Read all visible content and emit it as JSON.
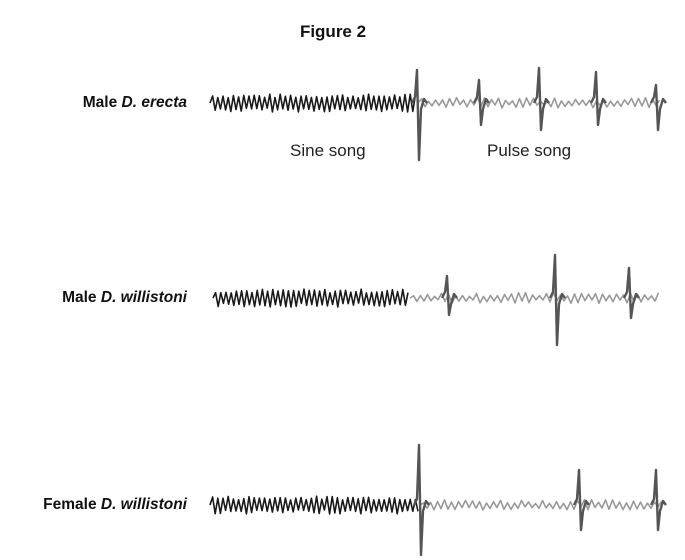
{
  "title": "Figure 2",
  "rows": [
    {
      "prefix": "Male",
      "species": "D. erecta"
    },
    {
      "prefix": "Male",
      "species": "D. willistoni"
    },
    {
      "prefix": "Female",
      "species": "D. willistoni"
    }
  ],
  "annotations": {
    "sine": "Sine song",
    "pulse": "Pulse song"
  },
  "colors": {
    "sine": "#1a1a1a",
    "pulse_background": "#999999",
    "pulse_spike": "#555555"
  }
}
